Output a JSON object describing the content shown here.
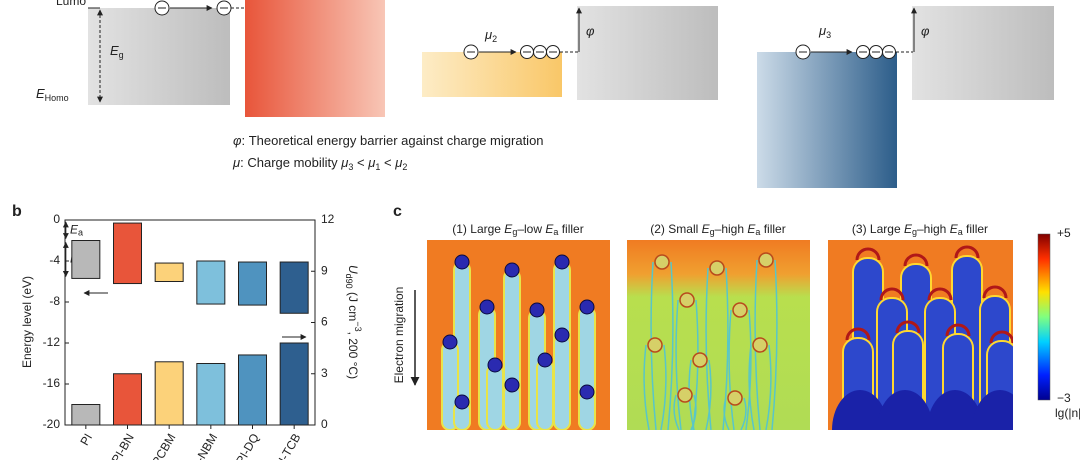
{
  "diagram": {
    "lumo": "Lumo",
    "eg": [
      "E",
      "g"
    ],
    "ehomo": [
      "E",
      "Homo"
    ],
    "mu2": [
      "μ",
      "2"
    ],
    "phi1": "φ",
    "mu3": [
      "μ",
      "3"
    ],
    "phi2": "φ",
    "legend1": [
      "φ",
      ": Theoretical energy barrier against charge migration"
    ],
    "legend2": [
      "μ",
      ": Charge mobility ",
      "μ",
      "3",
      " < ",
      "μ",
      "1",
      " < ",
      "μ",
      "2"
    ]
  },
  "chart_data": {
    "type": "bar",
    "panel": "b",
    "categories": [
      "PI",
      "PI-BN",
      "PI-PCBM",
      "PI-NBM",
      "PI-DQ",
      "PI-TCB"
    ],
    "energy_top": [
      -2.0,
      -0.3,
      -4.2,
      -4.0,
      -4.1,
      -4.1
    ],
    "energy_bottom": [
      -5.7,
      -6.2,
      -6.0,
      -8.2,
      -8.3,
      -9.1
    ],
    "values": [
      1.2,
      3.0,
      3.7,
      3.6,
      4.1,
      4.8
    ],
    "colors": [
      "#b8b8b8",
      "#e8553a",
      "#fcd27a",
      "#7ec0dc",
      "#4f93bf",
      "#2e5f8f"
    ],
    "ylim": [
      -20,
      0
    ],
    "yticks": [
      0,
      -4,
      -8,
      -12,
      -16,
      -20
    ],
    "y2lim": [
      0,
      12
    ],
    "y2ticks": [
      0,
      3,
      6,
      9,
      12
    ],
    "ylabel": "Energy level (eV)",
    "y2label": [
      "U",
      "d90",
      " (J cm",
      "−3",
      ", 200 °C)"
    ],
    "annotations": [
      [
        "E",
        "a"
      ],
      [
        "E",
        "g"
      ]
    ]
  },
  "panel_c": {
    "label": "c",
    "titles": [
      [
        "(1) Large ",
        "E",
        "g",
        "–low ",
        "E",
        "a",
        " filler"
      ],
      [
        "(2) Small ",
        "E",
        "g",
        "–high ",
        "E",
        "a",
        " filler"
      ],
      [
        "(3) Large ",
        "E",
        "g",
        "–high ",
        "E",
        "a",
        " filler"
      ]
    ],
    "ylabel": "Electron migration",
    "colorbar": {
      "max": "+5",
      "min": "−3",
      "label": "lg(|n|)"
    }
  }
}
